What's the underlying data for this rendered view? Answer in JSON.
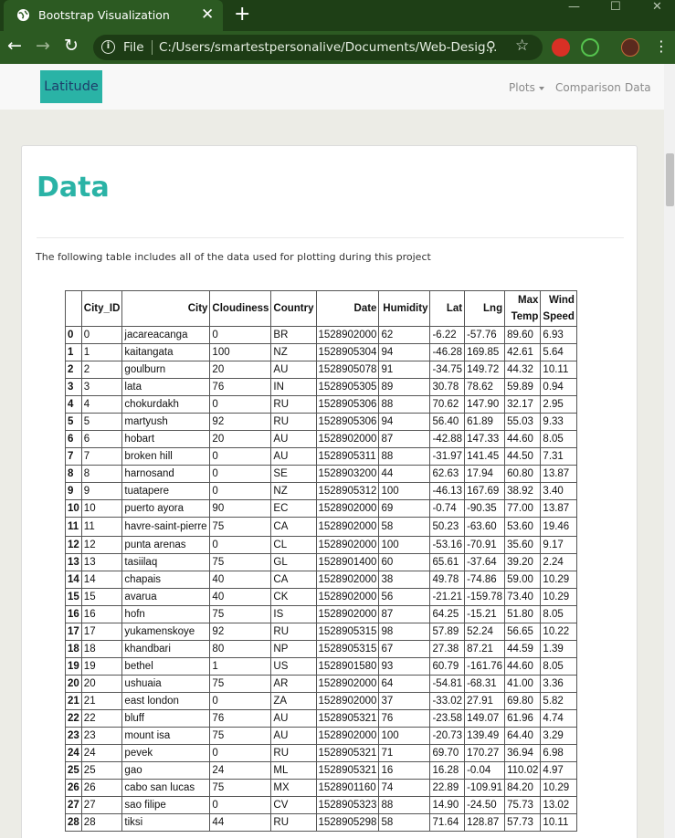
{
  "browser": {
    "tab_title": "Bootstrap Visualization",
    "file_label": "File",
    "url": "C:/Users/smartestpersonalive/Documents/Web-Desig..."
  },
  "navbar": {
    "brand": "Latitude",
    "links": [
      "Plots",
      "Comparison",
      "Data"
    ]
  },
  "content": {
    "heading": "Data",
    "description": "The following table includes all of the data used for plotting during this project"
  },
  "table": {
    "headers": [
      "",
      "City_ID",
      "City",
      "Cloudiness",
      "Country",
      "Date",
      "Humidity",
      "Lat",
      "Lng",
      "Max Temp",
      "Wind Speed"
    ],
    "rows": [
      [
        "0",
        "0",
        "jacareacanga",
        "0",
        "BR",
        "1528902000",
        "62",
        "-6.22",
        "-57.76",
        "89.60",
        "6.93"
      ],
      [
        "1",
        "1",
        "kaitangata",
        "100",
        "NZ",
        "1528905304",
        "94",
        "-46.28",
        "169.85",
        "42.61",
        "5.64"
      ],
      [
        "2",
        "2",
        "goulburn",
        "20",
        "AU",
        "1528905078",
        "91",
        "-34.75",
        "149.72",
        "44.32",
        "10.11"
      ],
      [
        "3",
        "3",
        "lata",
        "76",
        "IN",
        "1528905305",
        "89",
        "30.78",
        "78.62",
        "59.89",
        "0.94"
      ],
      [
        "4",
        "4",
        "chokurdakh",
        "0",
        "RU",
        "1528905306",
        "88",
        "70.62",
        "147.90",
        "32.17",
        "2.95"
      ],
      [
        "5",
        "5",
        "martyush",
        "92",
        "RU",
        "1528905306",
        "94",
        "56.40",
        "61.89",
        "55.03",
        "9.33"
      ],
      [
        "6",
        "6",
        "hobart",
        "20",
        "AU",
        "1528902000",
        "87",
        "-42.88",
        "147.33",
        "44.60",
        "8.05"
      ],
      [
        "7",
        "7",
        "broken hill",
        "0",
        "AU",
        "1528905311",
        "88",
        "-31.97",
        "141.45",
        "44.50",
        "7.31"
      ],
      [
        "8",
        "8",
        "harnosand",
        "0",
        "SE",
        "1528903200",
        "44",
        "62.63",
        "17.94",
        "60.80",
        "13.87"
      ],
      [
        "9",
        "9",
        "tuatapere",
        "0",
        "NZ",
        "1528905312",
        "100",
        "-46.13",
        "167.69",
        "38.92",
        "3.40"
      ],
      [
        "10",
        "10",
        "puerto ayora",
        "90",
        "EC",
        "1528902000",
        "69",
        "-0.74",
        "-90.35",
        "77.00",
        "13.87"
      ],
      [
        "11",
        "11",
        "havre-saint-pierre",
        "75",
        "CA",
        "1528902000",
        "58",
        "50.23",
        "-63.60",
        "53.60",
        "19.46"
      ],
      [
        "12",
        "12",
        "punta arenas",
        "0",
        "CL",
        "1528902000",
        "100",
        "-53.16",
        "-70.91",
        "35.60",
        "9.17"
      ],
      [
        "13",
        "13",
        "tasiilaq",
        "75",
        "GL",
        "1528901400",
        "60",
        "65.61",
        "-37.64",
        "39.20",
        "2.24"
      ],
      [
        "14",
        "14",
        "chapais",
        "40",
        "CA",
        "1528902000",
        "38",
        "49.78",
        "-74.86",
        "59.00",
        "10.29"
      ],
      [
        "15",
        "15",
        "avarua",
        "40",
        "CK",
        "1528902000",
        "56",
        "-21.21",
        "-159.78",
        "73.40",
        "10.29"
      ],
      [
        "16",
        "16",
        "hofn",
        "75",
        "IS",
        "1528902000",
        "87",
        "64.25",
        "-15.21",
        "51.80",
        "8.05"
      ],
      [
        "17",
        "17",
        "yukamenskoye",
        "92",
        "RU",
        "1528905315",
        "98",
        "57.89",
        "52.24",
        "56.65",
        "10.22"
      ],
      [
        "18",
        "18",
        "khandbari",
        "80",
        "NP",
        "1528905315",
        "67",
        "27.38",
        "87.21",
        "44.59",
        "1.39"
      ],
      [
        "19",
        "19",
        "bethel",
        "1",
        "US",
        "1528901580",
        "93",
        "60.79",
        "-161.76",
        "44.60",
        "8.05"
      ],
      [
        "20",
        "20",
        "ushuaia",
        "75",
        "AR",
        "1528902000",
        "64",
        "-54.81",
        "-68.31",
        "41.00",
        "3.36"
      ],
      [
        "21",
        "21",
        "east london",
        "0",
        "ZA",
        "1528902000",
        "37",
        "-33.02",
        "27.91",
        "69.80",
        "5.82"
      ],
      [
        "22",
        "22",
        "bluff",
        "76",
        "AU",
        "1528905321",
        "76",
        "-23.58",
        "149.07",
        "61.96",
        "4.74"
      ],
      [
        "23",
        "23",
        "mount isa",
        "75",
        "AU",
        "1528902000",
        "100",
        "-20.73",
        "139.49",
        "64.40",
        "3.29"
      ],
      [
        "24",
        "24",
        "pevek",
        "0",
        "RU",
        "1528905321",
        "71",
        "69.70",
        "170.27",
        "36.94",
        "6.98"
      ],
      [
        "25",
        "25",
        "gao",
        "24",
        "ML",
        "1528905321",
        "16",
        "16.28",
        "-0.04",
        "110.02",
        "4.97"
      ],
      [
        "26",
        "26",
        "cabo san lucas",
        "75",
        "MX",
        "1528901160",
        "74",
        "22.89",
        "-109.91",
        "84.20",
        "10.29"
      ],
      [
        "27",
        "27",
        "sao filipe",
        "0",
        "CV",
        "1528905323",
        "88",
        "14.90",
        "-24.50",
        "75.73",
        "13.02"
      ],
      [
        "28",
        "28",
        "tiksi",
        "44",
        "RU",
        "1528905298",
        "58",
        "71.64",
        "128.87",
        "57.73",
        "10.11"
      ]
    ]
  }
}
